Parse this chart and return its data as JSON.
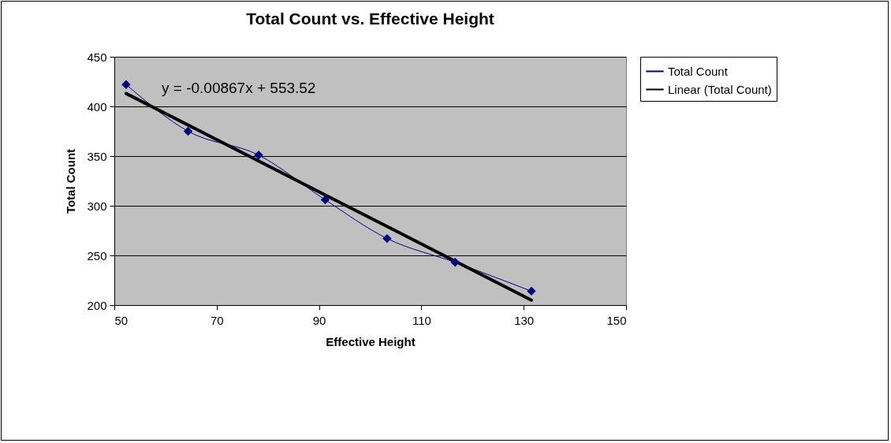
{
  "chart_data": {
    "type": "line",
    "title": "Total Count vs. Effective Height",
    "xlabel": "Effective Height",
    "ylabel": "Total Count",
    "xlim": [
      50,
      150
    ],
    "xticks": [
      50,
      70,
      90,
      110,
      130,
      150
    ],
    "ylim": [
      200,
      450
    ],
    "yticks": [
      200,
      250,
      300,
      350,
      400,
      450
    ],
    "grid": "y",
    "legend": "right",
    "annotations": [
      "y = -0.00867x + 553.52"
    ],
    "series": [
      {
        "name": "Total Count",
        "color": "#000080",
        "marker": "diamond",
        "x": [
          52.3,
          64.4,
          78.2,
          91.2,
          103.3,
          116.6,
          131.5
        ],
        "values": [
          422,
          375,
          351,
          306,
          267,
          243,
          214
        ]
      },
      {
        "name": "Linear (Total Count)",
        "color": "#000000",
        "marker": "none",
        "x": [
          52.3,
          131.5
        ],
        "values": [
          413,
          205
        ]
      }
    ]
  }
}
